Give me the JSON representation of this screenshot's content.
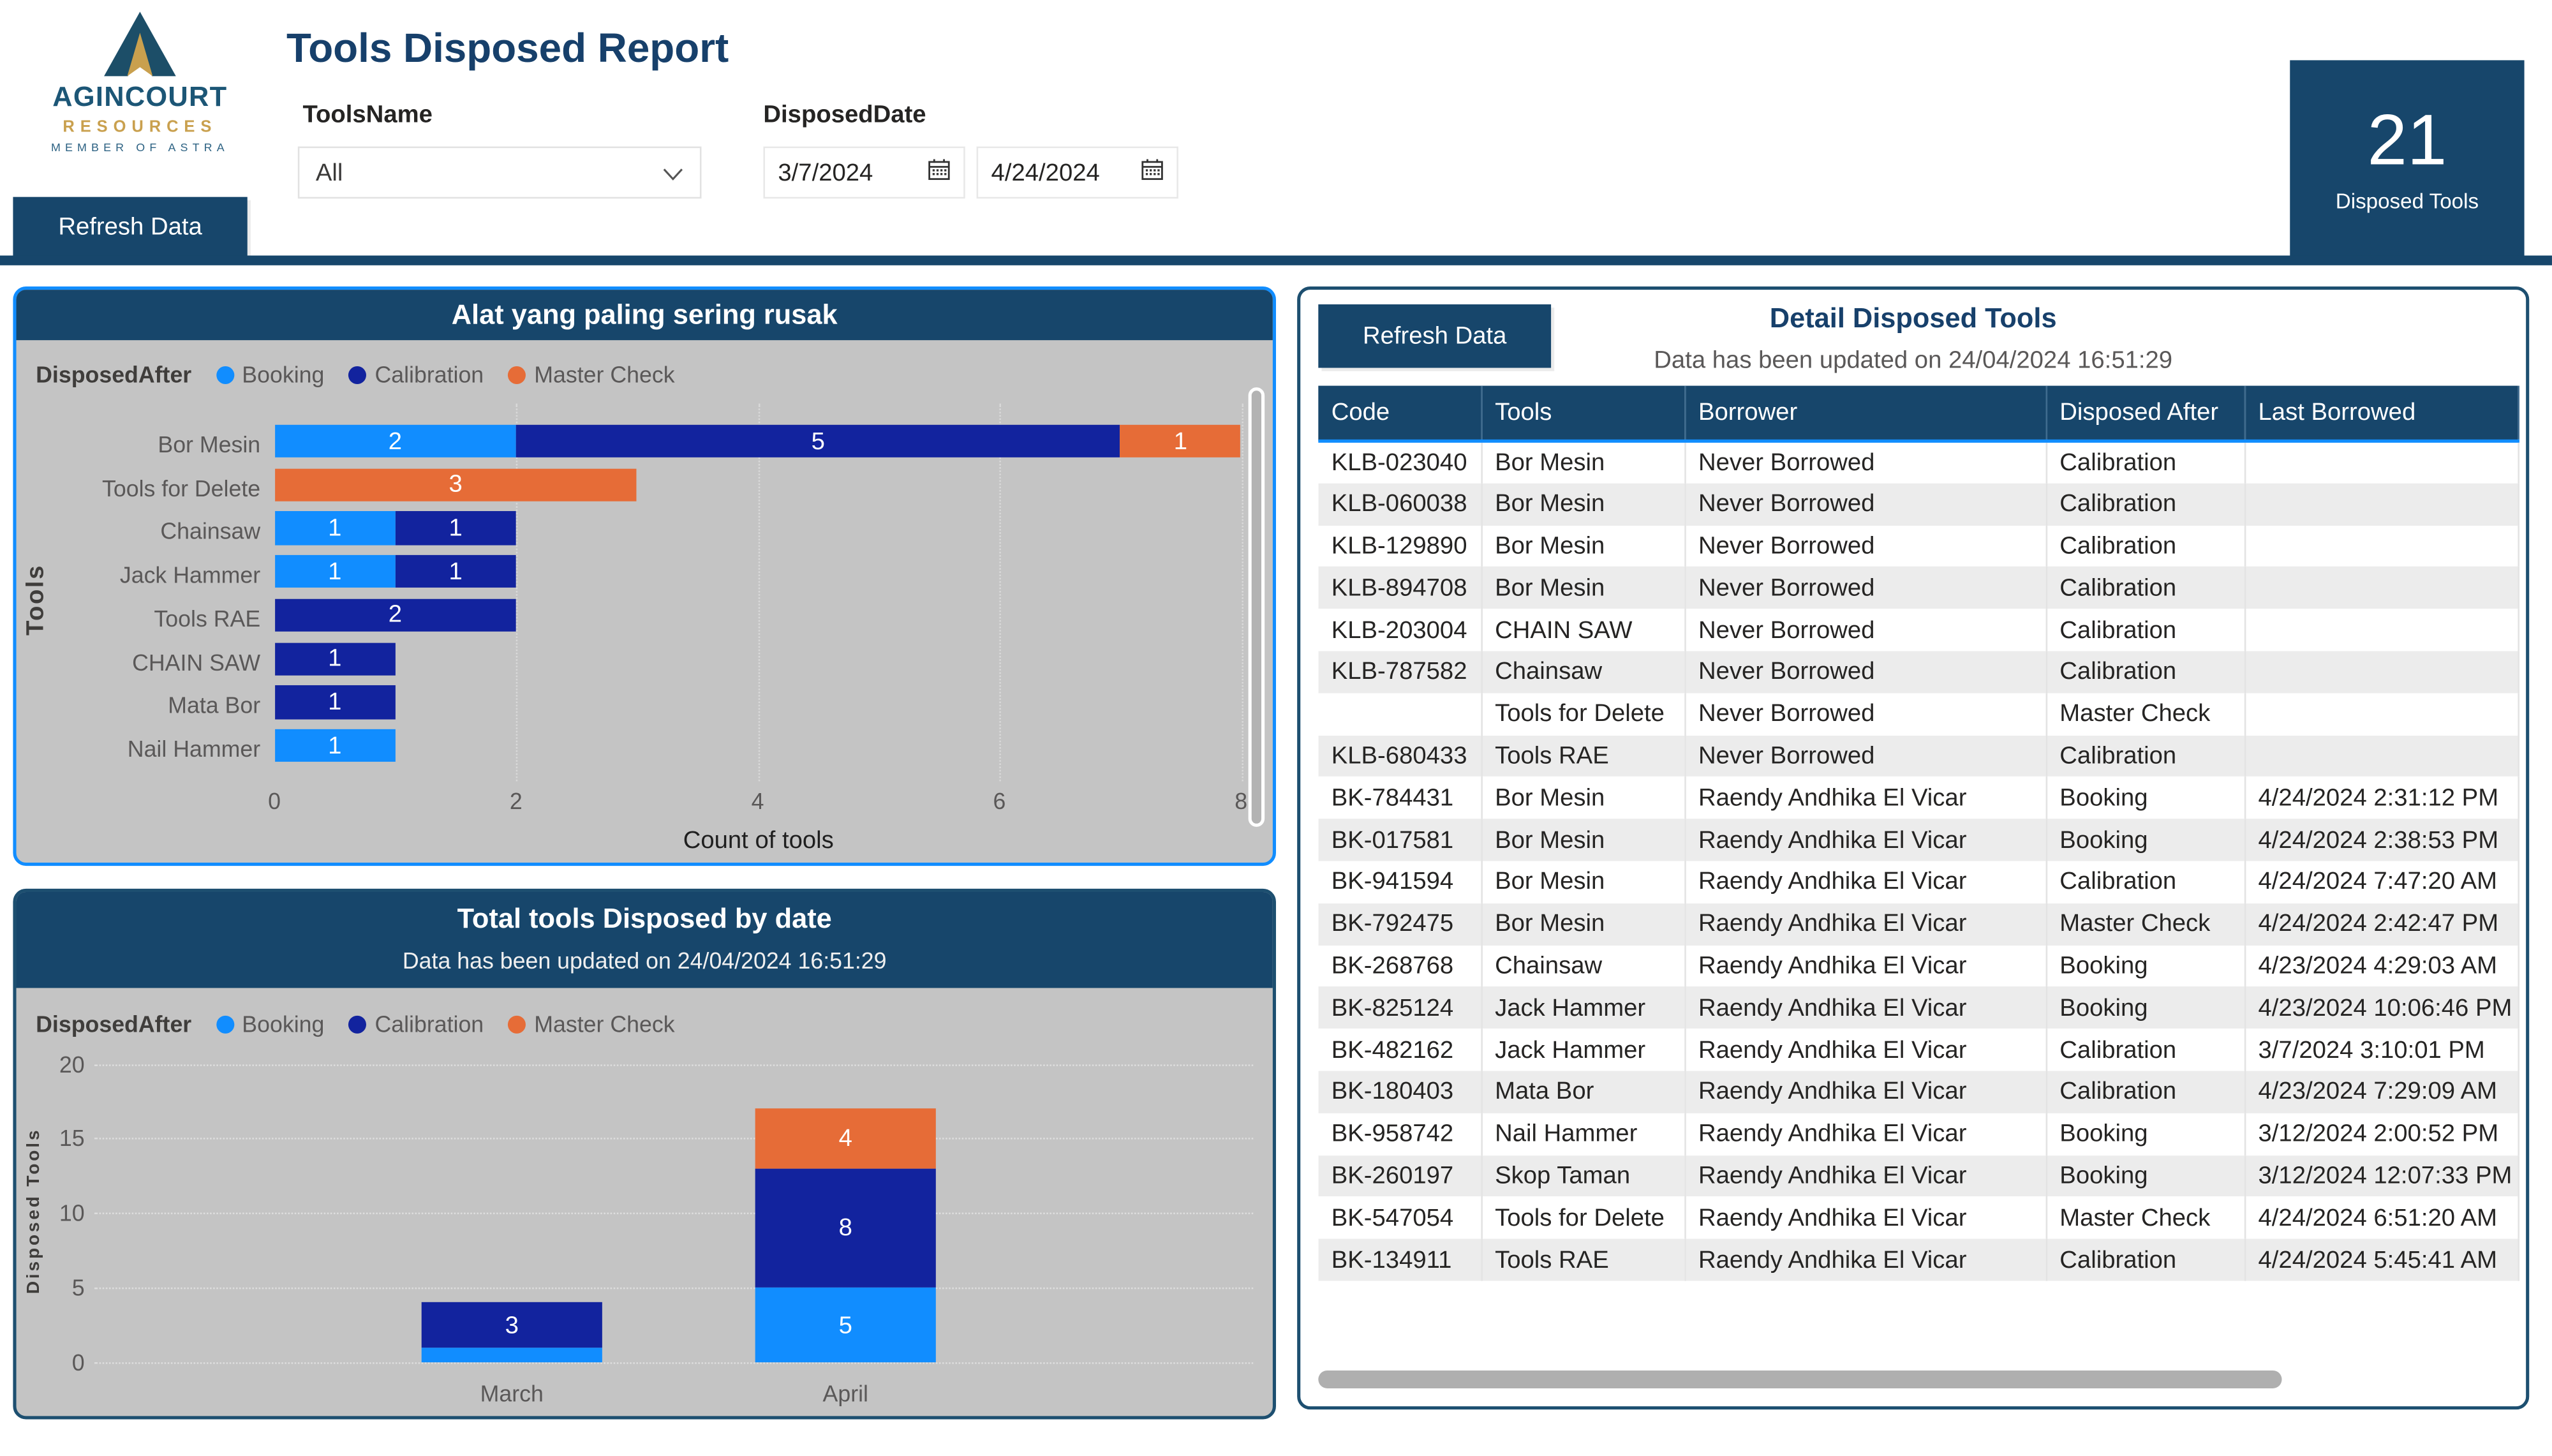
{
  "header": {
    "logo": {
      "brand": "AGINCOURT",
      "sub": "RESOURCES",
      "member": "MEMBER OF ASTRA"
    },
    "title": "Tools Disposed Report",
    "tools_name_label": "ToolsName",
    "tools_name_value": "All",
    "disposed_date_label": "DisposedDate",
    "date_from": "3/7/2024",
    "date_to": "4/24/2024",
    "refresh_button_label": "Refresh Data",
    "kpi": {
      "value": "21",
      "label": "Disposed Tools"
    }
  },
  "colors": {
    "navy": "#17466b",
    "booking": "#118DFF",
    "calibration": "#12239E",
    "master_check": "#E66C37",
    "chart_background": "#c4c4c4",
    "chart1_border": "#118dff"
  },
  "legend": {
    "title": "DisposedAfter",
    "items": [
      {
        "label": "Booking",
        "color": "#118DFF"
      },
      {
        "label": "Calibration",
        "color": "#12239E"
      },
      {
        "label": "Master Check",
        "color": "#E66C37"
      }
    ]
  },
  "chart_data": [
    {
      "type": "bar",
      "orientation": "horizontal",
      "title": "Alat yang paling sering rusak",
      "categories": [
        "Bor Mesin",
        "Tools for Delete",
        "Chainsaw",
        "Jack Hammer",
        "Tools RAE",
        "CHAIN SAW",
        "Mata Bor",
        "Nail Hammer"
      ],
      "series": [
        {
          "name": "Booking",
          "color": "#118DFF",
          "values": [
            2,
            0,
            1,
            1,
            0,
            0,
            0,
            1
          ]
        },
        {
          "name": "Calibration",
          "color": "#12239E",
          "values": [
            5,
            0,
            1,
            1,
            2,
            1,
            1,
            0
          ]
        },
        {
          "name": "Master Check",
          "color": "#E66C37",
          "values": [
            1,
            3,
            0,
            0,
            0,
            0,
            0,
            0
          ]
        }
      ],
      "xlabel": "Count of tools",
      "ylabel": "Tools",
      "xticks": [
        0,
        2,
        4,
        6,
        8
      ],
      "xlim": [
        0,
        8
      ],
      "grid": "vertical-dotted",
      "legend_position": "top"
    },
    {
      "type": "bar",
      "orientation": "vertical",
      "title": "Total tools Disposed by date",
      "subtitle": "Data has been updated on 24/04/2024 16:51:29",
      "categories": [
        "March",
        "April"
      ],
      "series": [
        {
          "name": "Booking",
          "color": "#118DFF",
          "values": [
            1,
            5
          ]
        },
        {
          "name": "Calibration",
          "color": "#12239E",
          "values": [
            3,
            8
          ]
        },
        {
          "name": "Master Check",
          "color": "#E66C37",
          "values": [
            0,
            4
          ]
        }
      ],
      "ylabel": "Disposed Tools",
      "yticks": [
        0,
        5,
        10,
        15,
        20
      ],
      "ylim": [
        0,
        20
      ],
      "grid": "horizontal-dotted",
      "legend_position": "top"
    }
  ],
  "table_panel": {
    "refresh_button_label": "Refresh Data",
    "title": "Detail Disposed Tools",
    "subtitle": "Data has been updated on 24/04/2024 16:51:29",
    "columns": [
      "Code",
      "Tools",
      "Borrower",
      "Disposed After",
      "Last Borrowed"
    ],
    "rows": [
      [
        "KLB-023040",
        "Bor Mesin",
        "Never Borrowed",
        "Calibration",
        ""
      ],
      [
        "KLB-060038",
        "Bor Mesin",
        "Never Borrowed",
        "Calibration",
        ""
      ],
      [
        "KLB-129890",
        "Bor Mesin",
        "Never Borrowed",
        "Calibration",
        ""
      ],
      [
        "KLB-894708",
        "Bor Mesin",
        "Never Borrowed",
        "Calibration",
        ""
      ],
      [
        "KLB-203004",
        "CHAIN SAW",
        "Never Borrowed",
        "Calibration",
        ""
      ],
      [
        "KLB-787582",
        "Chainsaw",
        "Never Borrowed",
        "Calibration",
        ""
      ],
      [
        "",
        "Tools for Delete",
        "Never Borrowed",
        "Master Check",
        ""
      ],
      [
        "KLB-680433",
        "Tools RAE",
        "Never Borrowed",
        "Calibration",
        ""
      ],
      [
        "BK-784431",
        "Bor Mesin",
        "Raendy Andhika El Vicar",
        "Booking",
        "4/24/2024 2:31:12 PM"
      ],
      [
        "BK-017581",
        "Bor Mesin",
        "Raendy Andhika El Vicar",
        "Booking",
        "4/24/2024 2:38:53 PM"
      ],
      [
        "BK-941594",
        "Bor Mesin",
        "Raendy Andhika El Vicar",
        "Calibration",
        "4/24/2024 7:47:20 AM"
      ],
      [
        "BK-792475",
        "Bor Mesin",
        "Raendy Andhika El Vicar",
        "Master Check",
        "4/24/2024 2:42:47 PM"
      ],
      [
        "BK-268768",
        "Chainsaw",
        "Raendy Andhika El Vicar",
        "Booking",
        "4/23/2024 4:29:03 AM"
      ],
      [
        "BK-825124",
        "Jack Hammer",
        "Raendy Andhika El Vicar",
        "Booking",
        "4/23/2024 10:06:46 PM"
      ],
      [
        "BK-482162",
        "Jack Hammer",
        "Raendy Andhika El Vicar",
        "Calibration",
        "3/7/2024 3:10:01 PM"
      ],
      [
        "BK-180403",
        "Mata Bor",
        "Raendy Andhika El Vicar",
        "Calibration",
        "4/23/2024 7:29:09 AM"
      ],
      [
        "BK-958742",
        "Nail Hammer",
        "Raendy Andhika El Vicar",
        "Booking",
        "3/12/2024 2:00:52 PM"
      ],
      [
        "BK-260197",
        "Skop Taman",
        "Raendy Andhika El Vicar",
        "Booking",
        "3/12/2024 12:07:33 PM"
      ],
      [
        "BK-547054",
        "Tools for Delete",
        "Raendy Andhika El Vicar",
        "Master Check",
        "4/24/2024 6:51:20 AM"
      ],
      [
        "BK-134911",
        "Tools RAE",
        "Raendy Andhika El Vicar",
        "Calibration",
        "4/24/2024 5:45:41 AM"
      ]
    ]
  }
}
